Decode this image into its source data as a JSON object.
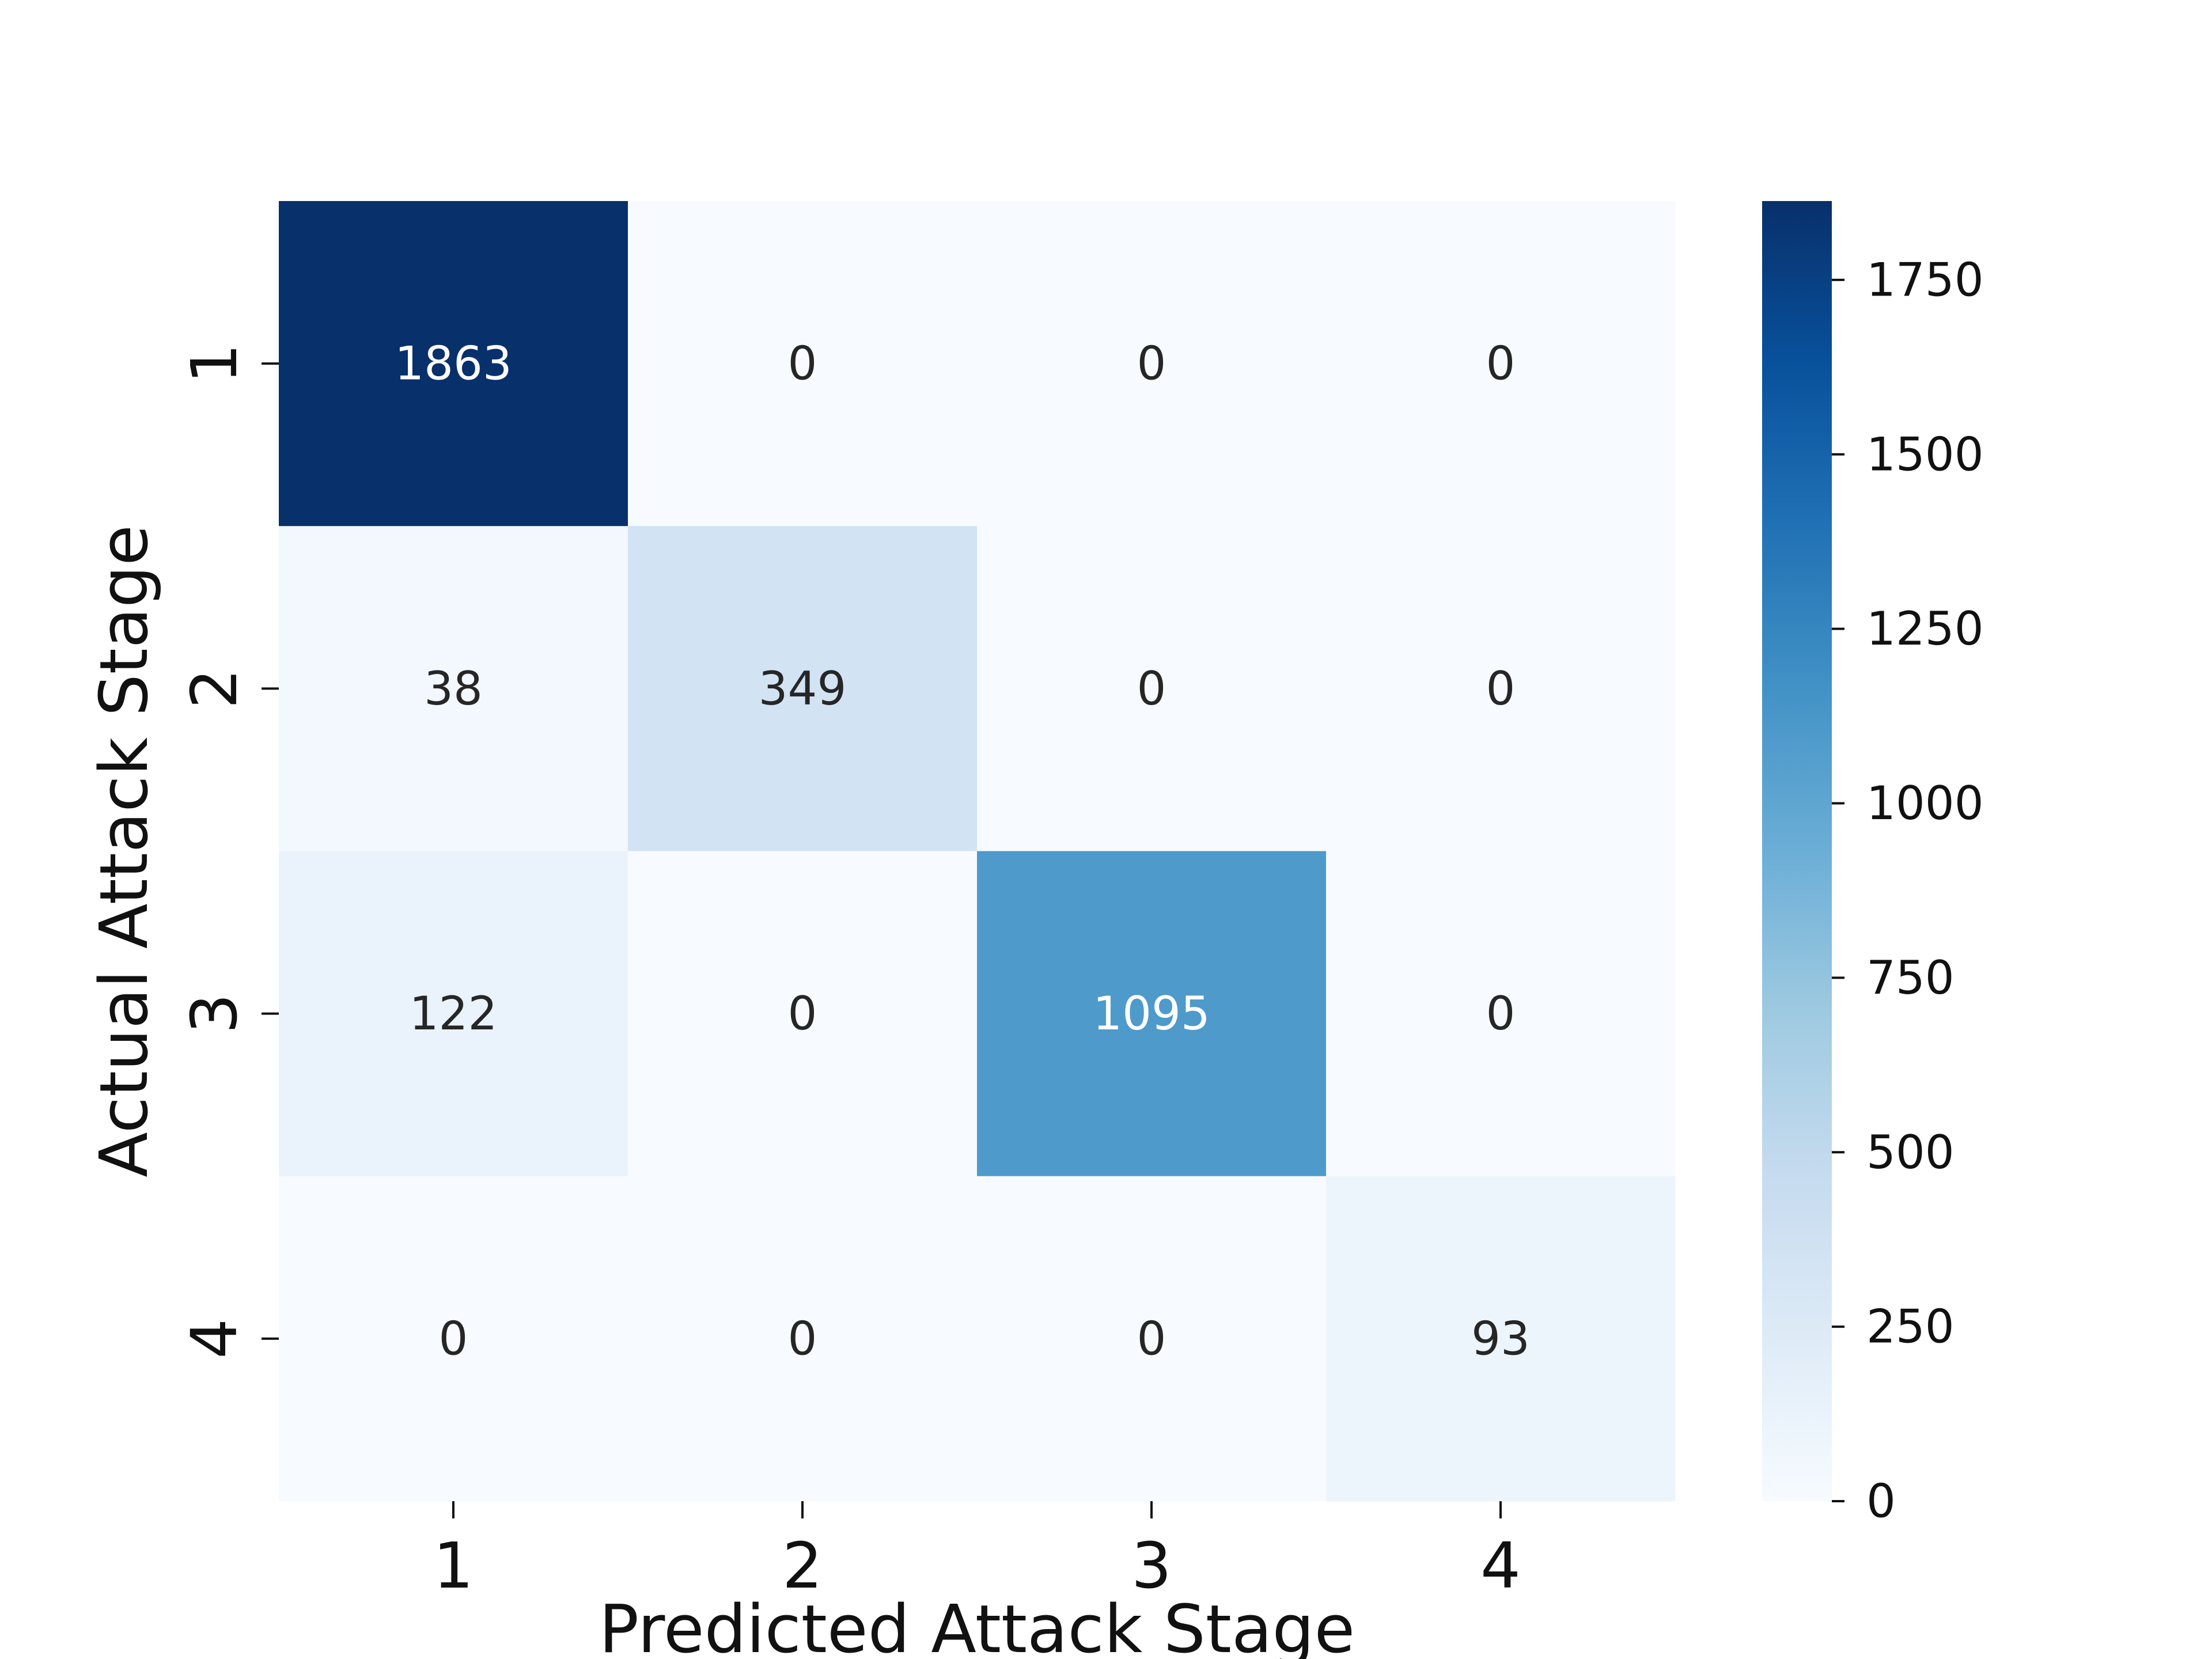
{
  "chart_data": {
    "type": "heatmap",
    "title": "",
    "xlabel": "Predicted Attack Stage",
    "ylabel": "Actual Attack Stage",
    "x_categories": [
      "1",
      "2",
      "3",
      "4"
    ],
    "y_categories": [
      "1",
      "2",
      "3",
      "4"
    ],
    "values": [
      [
        1863,
        0,
        0,
        0
      ],
      [
        38,
        349,
        0,
        0
      ],
      [
        122,
        0,
        1095,
        0
      ],
      [
        0,
        0,
        0,
        93
      ]
    ],
    "colormap": "Blues",
    "colorbar": {
      "range": [
        0,
        1863
      ],
      "ticks": [
        0,
        250,
        500,
        750,
        1000,
        1250,
        1500,
        1750
      ]
    },
    "grid": false
  }
}
